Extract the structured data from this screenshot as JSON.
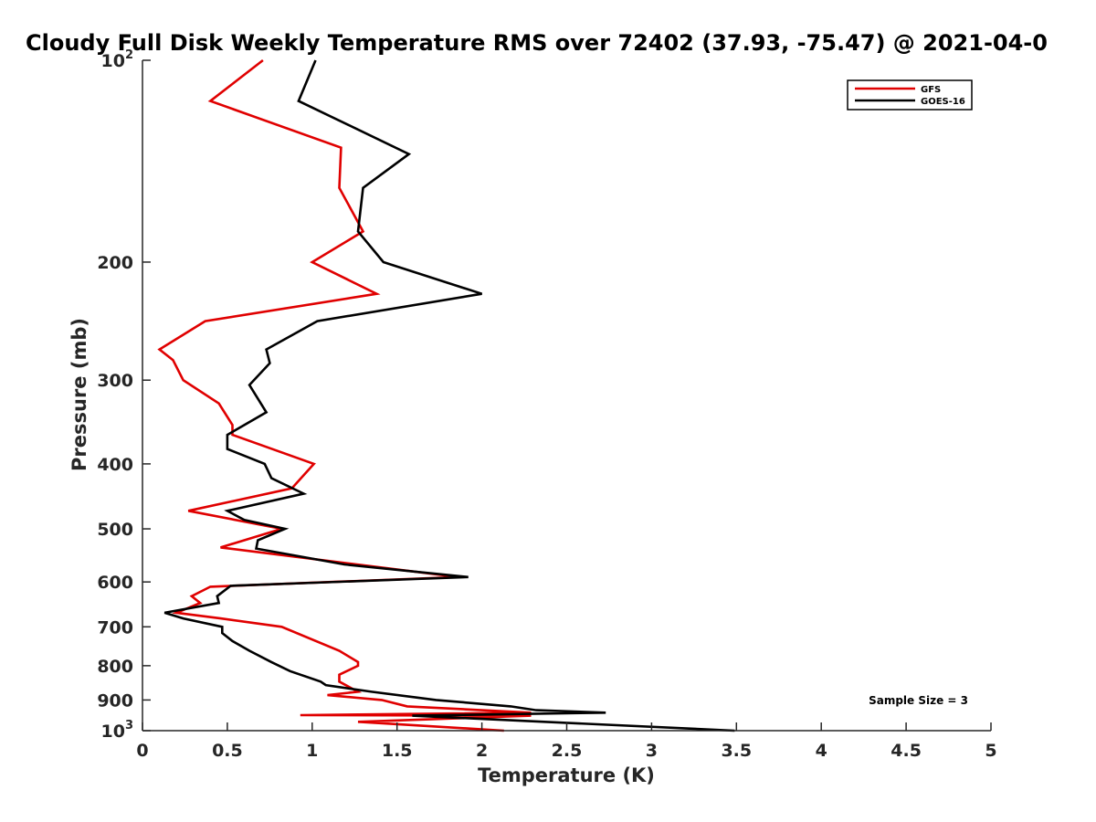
{
  "chart_data": {
    "type": "line",
    "title": "Cloudy Full Disk Weekly Temperature RMS over 72402 (37.93, -75.47) @ 2021-04-0",
    "xlabel": "Temperature (K)",
    "ylabel": "Pressure (mb)",
    "xlim": [
      0,
      5
    ],
    "ylim": [
      100,
      1000
    ],
    "yscale": "log",
    "y_reversed": true,
    "x_ticks": [
      0,
      0.5,
      1,
      1.5,
      2,
      2.5,
      3,
      3.5,
      4,
      4.5,
      5
    ],
    "x_tick_labels": [
      "0",
      "0.5",
      "1",
      "1.5",
      "2",
      "2.5",
      "3",
      "3.5",
      "4",
      "4.5",
      "5"
    ],
    "y_ticks": [
      100,
      200,
      300,
      400,
      500,
      600,
      700,
      800,
      900,
      1000
    ],
    "y_tick_labels": [
      {
        "base": "10",
        "sup": "2"
      },
      {
        "base": "200"
      },
      {
        "base": "300"
      },
      {
        "base": "400"
      },
      {
        "base": "500"
      },
      {
        "base": "600"
      },
      {
        "base": "700"
      },
      {
        "base": "800"
      },
      {
        "base": "900"
      },
      {
        "base": "10",
        "sup": "3"
      }
    ],
    "grid": false,
    "legend_position": "top-right",
    "annotation": "Sample Size = 3",
    "series": [
      {
        "name": "GFS",
        "color": "#e00000",
        "points": [
          [
            0.71,
            100
          ],
          [
            0.4,
            115
          ],
          [
            1.17,
            135
          ],
          [
            1.16,
            155
          ],
          [
            1.3,
            180
          ],
          [
            1.0,
            200
          ],
          [
            1.38,
            223
          ],
          [
            0.37,
            245
          ],
          [
            0.1,
            270
          ],
          [
            0.18,
            280
          ],
          [
            0.24,
            300
          ],
          [
            0.45,
            325
          ],
          [
            0.53,
            350
          ],
          [
            0.53,
            362
          ],
          [
            1.01,
            400
          ],
          [
            0.88,
            435
          ],
          [
            0.27,
            470
          ],
          [
            0.82,
            500
          ],
          [
            0.46,
            533
          ],
          [
            1.86,
            590
          ],
          [
            0.4,
            610
          ],
          [
            0.29,
            630
          ],
          [
            0.34,
            645
          ],
          [
            0.2,
            667
          ],
          [
            0.46,
            680
          ],
          [
            0.82,
            700
          ],
          [
            1.16,
            760
          ],
          [
            1.27,
            790
          ],
          [
            1.27,
            800
          ],
          [
            1.16,
            825
          ],
          [
            1.16,
            845
          ],
          [
            1.27,
            875
          ],
          [
            1.09,
            885
          ],
          [
            1.41,
            900
          ],
          [
            1.56,
            920
          ],
          [
            2.29,
            940
          ],
          [
            0.93,
            948
          ],
          [
            2.29,
            950
          ],
          [
            1.27,
            970
          ],
          [
            2.13,
            1000
          ]
        ]
      },
      {
        "name": "GOES-16",
        "color": "#000000",
        "points": [
          [
            1.02,
            100
          ],
          [
            0.92,
            115
          ],
          [
            1.57,
            138
          ],
          [
            1.3,
            155
          ],
          [
            1.27,
            180
          ],
          [
            1.42,
            200
          ],
          [
            2.0,
            223
          ],
          [
            1.03,
            245
          ],
          [
            0.73,
            270
          ],
          [
            0.75,
            283
          ],
          [
            0.63,
            305
          ],
          [
            0.73,
            335
          ],
          [
            0.5,
            362
          ],
          [
            0.5,
            380
          ],
          [
            0.72,
            400
          ],
          [
            0.76,
            420
          ],
          [
            0.95,
            443
          ],
          [
            0.5,
            470
          ],
          [
            0.6,
            485
          ],
          [
            0.84,
            500
          ],
          [
            0.68,
            520
          ],
          [
            0.67,
            535
          ],
          [
            1.19,
            565
          ],
          [
            1.92,
            590
          ],
          [
            0.52,
            608
          ],
          [
            0.44,
            630
          ],
          [
            0.45,
            645
          ],
          [
            0.13,
            667
          ],
          [
            0.24,
            680
          ],
          [
            0.47,
            700
          ],
          [
            0.47,
            715
          ],
          [
            0.53,
            735
          ],
          [
            0.63,
            760
          ],
          [
            0.76,
            790
          ],
          [
            0.87,
            815
          ],
          [
            1.05,
            845
          ],
          [
            1.08,
            855
          ],
          [
            1.35,
            875
          ],
          [
            1.73,
            900
          ],
          [
            2.17,
            920
          ],
          [
            2.32,
            932
          ],
          [
            2.73,
            940
          ],
          [
            1.59,
            950
          ],
          [
            3.49,
            1000
          ]
        ]
      }
    ]
  }
}
